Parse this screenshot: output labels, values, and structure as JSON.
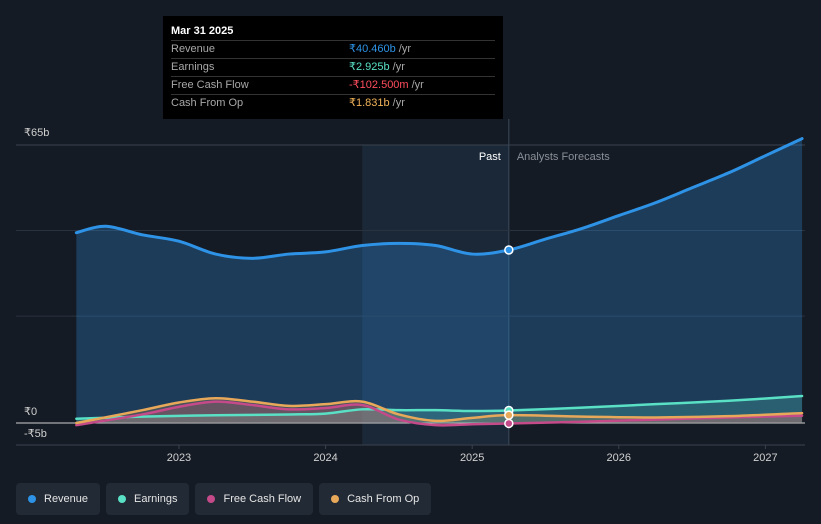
{
  "tooltip": {
    "date": "Mar 31 2025",
    "rows": [
      {
        "label": "Revenue",
        "value": "₹40.460b",
        "unit": "/yr",
        "color": "#2e93e6"
      },
      {
        "label": "Earnings",
        "value": "₹2.925b",
        "unit": "/yr",
        "color": "#59e0c5"
      },
      {
        "label": "Free Cash Flow",
        "value": "-₹102.500m",
        "unit": "/yr",
        "color": "#ff4d5e"
      },
      {
        "label": "Cash From Op",
        "value": "₹1.831b",
        "unit": "/yr",
        "color": "#f2b35a"
      }
    ]
  },
  "legend": [
    {
      "label": "Revenue",
      "color": "#2e93e6"
    },
    {
      "label": "Earnings",
      "color": "#59e0c5"
    },
    {
      "label": "Free Cash Flow",
      "color": "#c44a8a"
    },
    {
      "label": "Cash From Op",
      "color": "#e8a85a"
    }
  ],
  "chart_data": {
    "type": "line",
    "title": "",
    "xlabel": "",
    "ylabel": "",
    "y_tick_labels": [
      "₹65b",
      "₹0",
      "-₹5b"
    ],
    "y_tick_values": [
      65,
      0,
      -5
    ],
    "ylim": [
      -5,
      65
    ],
    "xlim": [
      2022.1,
      2027.27
    ],
    "x_ticks": [
      2023,
      2024,
      2025,
      2026,
      2027
    ],
    "x_tick_labels": [
      "2023",
      "2024",
      "2025",
      "2026",
      "2027"
    ],
    "past_label": "Past",
    "forecast_label": "Analysts Forecasts",
    "past_start": 2024.25,
    "split_x": 2025.25,
    "series": [
      {
        "name": "Revenue",
        "color": "#2e93e6",
        "x": [
          2022.3,
          2022.5,
          2022.75,
          2023.0,
          2023.25,
          2023.5,
          2023.75,
          2024.0,
          2024.25,
          2024.5,
          2024.75,
          2025.0,
          2025.25,
          2025.5,
          2025.75,
          2026.0,
          2026.25,
          2026.5,
          2026.75,
          2027.0,
          2027.25
        ],
        "values": [
          44.5,
          46.0,
          44.0,
          42.5,
          39.5,
          38.5,
          39.5,
          40.0,
          41.5,
          42.0,
          41.5,
          39.5,
          40.46,
          43.0,
          45.5,
          48.5,
          51.5,
          55.0,
          58.5,
          62.5,
          66.5
        ]
      },
      {
        "name": "Earnings",
        "color": "#59e0c5",
        "x": [
          2022.3,
          2022.75,
          2023.25,
          2023.75,
          2024.0,
          2024.25,
          2024.5,
          2024.75,
          2025.0,
          2025.25,
          2025.75,
          2026.25,
          2026.75,
          2027.25
        ],
        "values": [
          1.0,
          1.5,
          1.8,
          2.0,
          2.2,
          3.2,
          3.0,
          3.0,
          2.8,
          2.925,
          3.6,
          4.4,
          5.2,
          6.3
        ]
      },
      {
        "name": "Free Cash Flow",
        "color": "#c44a8a",
        "x": [
          2022.3,
          2022.75,
          2023.0,
          2023.25,
          2023.5,
          2023.75,
          2024.0,
          2024.25,
          2024.5,
          2024.75,
          2025.0,
          2025.25,
          2025.75,
          2026.25,
          2026.75,
          2027.25
        ],
        "values": [
          -0.5,
          2.0,
          3.8,
          5.0,
          4.2,
          3.2,
          3.5,
          4.2,
          0.8,
          -0.5,
          -0.3,
          -0.1025,
          0.3,
          0.8,
          1.3,
          1.7
        ]
      },
      {
        "name": "Cash From Op",
        "color": "#e8a85a",
        "x": [
          2022.3,
          2022.75,
          2023.0,
          2023.25,
          2023.5,
          2023.75,
          2024.0,
          2024.25,
          2024.5,
          2024.75,
          2025.0,
          2025.25,
          2025.75,
          2026.25,
          2026.75,
          2027.25
        ],
        "values": [
          0.0,
          3.0,
          4.8,
          5.8,
          5.0,
          4.0,
          4.4,
          5.0,
          2.0,
          0.5,
          1.2,
          1.831,
          1.5,
          1.3,
          1.6,
          2.3
        ]
      }
    ],
    "highlight_x": 2025.25
  }
}
